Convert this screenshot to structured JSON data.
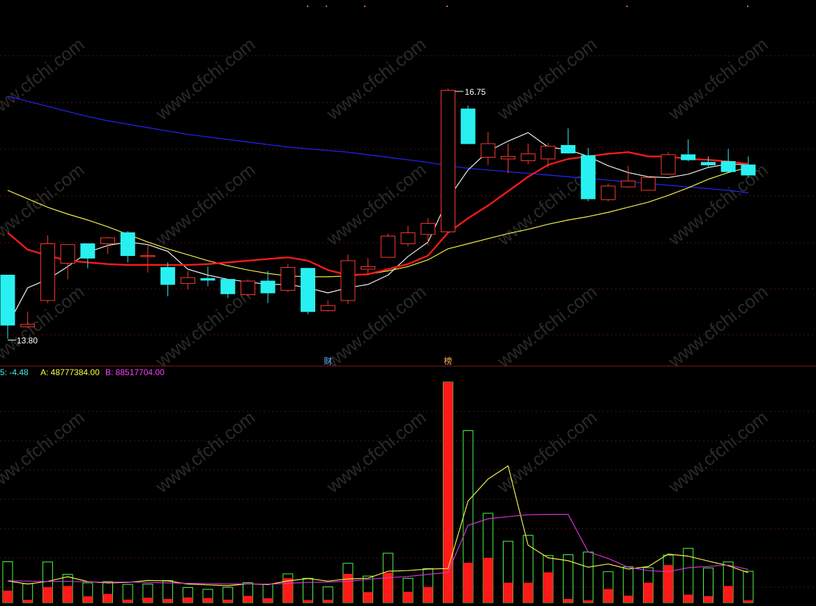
{
  "chart_data": {
    "type": "candlestick",
    "price_axis": {
      "min": 13.6,
      "max": 17.4
    },
    "candles": [
      {
        "o": 14.55,
        "h": 14.55,
        "l": 13.8,
        "c": 13.96
      },
      {
        "o": 13.94,
        "h": 14.12,
        "l": 13.93,
        "c": 13.97
      },
      {
        "o": 14.25,
        "h": 15.02,
        "l": 14.22,
        "c": 14.92
      },
      {
        "o": 14.69,
        "h": 14.9,
        "l": 14.5,
        "c": 14.91
      },
      {
        "o": 14.92,
        "h": 14.92,
        "l": 14.63,
        "c": 14.75
      },
      {
        "o": 14.92,
        "h": 15.0,
        "l": 14.8,
        "c": 14.99
      },
      {
        "o": 15.05,
        "h": 15.07,
        "l": 14.7,
        "c": 14.78
      },
      {
        "o": 14.77,
        "h": 14.9,
        "l": 14.58,
        "c": 14.78
      },
      {
        "o": 14.64,
        "h": 14.7,
        "l": 14.3,
        "c": 14.44
      },
      {
        "o": 14.45,
        "h": 14.6,
        "l": 14.38,
        "c": 14.52
      },
      {
        "o": 14.51,
        "h": 14.65,
        "l": 14.42,
        "c": 14.49
      },
      {
        "o": 14.5,
        "h": 14.5,
        "l": 14.28,
        "c": 14.33
      },
      {
        "o": 14.32,
        "h": 14.5,
        "l": 14.3,
        "c": 14.48
      },
      {
        "o": 14.48,
        "h": 14.6,
        "l": 14.22,
        "c": 14.34
      },
      {
        "o": 14.37,
        "h": 14.68,
        "l": 14.35,
        "c": 14.64
      },
      {
        "o": 14.63,
        "h": 14.63,
        "l": 14.09,
        "c": 14.12
      },
      {
        "o": 14.13,
        "h": 14.25,
        "l": 14.12,
        "c": 14.19
      },
      {
        "o": 14.25,
        "h": 14.79,
        "l": 14.21,
        "c": 14.72
      },
      {
        "o": 14.62,
        "h": 14.75,
        "l": 14.55,
        "c": 14.65
      },
      {
        "o": 14.76,
        "h": 15.04,
        "l": 14.76,
        "c": 15.01
      },
      {
        "o": 14.92,
        "h": 15.13,
        "l": 14.89,
        "c": 15.05
      },
      {
        "o": 15.03,
        "h": 15.22,
        "l": 14.9,
        "c": 15.16
      },
      {
        "o": 15.06,
        "h": 16.75,
        "l": 15.06,
        "c": 16.73
      },
      {
        "o": 16.51,
        "h": 16.55,
        "l": 16.11,
        "c": 16.1
      },
      {
        "o": 15.94,
        "h": 16.24,
        "l": 15.85,
        "c": 16.1
      },
      {
        "o": 15.92,
        "h": 16.1,
        "l": 15.75,
        "c": 15.95
      },
      {
        "o": 15.9,
        "h": 16.1,
        "l": 15.86,
        "c": 15.98
      },
      {
        "o": 15.92,
        "h": 16.11,
        "l": 15.82,
        "c": 16.07
      },
      {
        "o": 16.08,
        "h": 16.28,
        "l": 15.99,
        "c": 15.99
      },
      {
        "o": 15.96,
        "h": 16.05,
        "l": 15.42,
        "c": 15.45
      },
      {
        "o": 15.44,
        "h": 15.63,
        "l": 15.42,
        "c": 15.6
      },
      {
        "o": 15.59,
        "h": 15.84,
        "l": 15.58,
        "c": 15.66
      },
      {
        "o": 15.55,
        "h": 15.72,
        "l": 15.56,
        "c": 15.7
      },
      {
        "o": 15.74,
        "h": 16.0,
        "l": 15.73,
        "c": 15.97
      },
      {
        "o": 15.97,
        "h": 16.15,
        "l": 15.89,
        "c": 15.91
      },
      {
        "o": 15.88,
        "h": 15.95,
        "l": 15.82,
        "c": 15.85
      },
      {
        "o": 15.89,
        "h": 16.04,
        "l": 15.76,
        "c": 15.77
      },
      {
        "o": 15.85,
        "h": 15.95,
        "l": 15.7,
        "c": 15.73
      }
    ],
    "ma_white": [
      13.96,
      14.4,
      14.5,
      14.65,
      14.82,
      14.9,
      14.94,
      14.91,
      14.83,
      14.62,
      14.55,
      14.5,
      14.47,
      14.44,
      14.44,
      14.4,
      14.34,
      14.4,
      14.44,
      14.55,
      14.77,
      14.94,
      15.45,
      15.79,
      16.01,
      16.13,
      16.23,
      16.06,
      16.03,
      15.95,
      15.84,
      15.76,
      15.71,
      15.7,
      15.74,
      15.82,
      15.86,
      15.85
    ],
    "ma_red": [
      15.05,
      14.85,
      14.78,
      14.72,
      14.7,
      14.68,
      14.67,
      14.67,
      14.67,
      14.67,
      14.68,
      14.7,
      14.72,
      14.74,
      14.76,
      14.72,
      14.61,
      14.55,
      14.56,
      14.62,
      14.68,
      14.78,
      15.05,
      15.22,
      15.37,
      15.54,
      15.71,
      15.85,
      15.92,
      15.95,
      15.98,
      16.0,
      15.95,
      15.95,
      15.92,
      15.91,
      15.89,
      15.86
    ],
    "ma_yellow": [
      15.55,
      15.45,
      15.35,
      15.27,
      15.2,
      15.12,
      15.03,
      14.94,
      14.86,
      14.79,
      14.72,
      14.66,
      14.61,
      14.57,
      14.54,
      14.53,
      14.53,
      14.54,
      14.56,
      14.6,
      14.65,
      14.73,
      14.86,
      14.92,
      14.98,
      15.04,
      15.09,
      15.15,
      15.2,
      15.24,
      15.29,
      15.35,
      15.41,
      15.49,
      15.58,
      15.68,
      15.76,
      15.82
    ],
    "ma_blue": [
      16.66,
      16.6,
      16.54,
      16.48,
      16.42,
      16.37,
      16.33,
      16.29,
      16.25,
      16.21,
      16.18,
      16.15,
      16.12,
      16.09,
      16.06,
      16.04,
      16.02,
      16.0,
      15.97,
      15.94,
      15.91,
      15.88,
      15.84,
      15.81,
      15.79,
      15.77,
      15.75,
      15.73,
      15.71,
      15.69,
      15.67,
      15.65,
      15.63,
      15.61,
      15.59,
      15.57,
      15.55,
      15.52
    ],
    "annotations": {
      "high_label": "16.75",
      "low_label": "13.80"
    },
    "markers": [
      {
        "text": "财",
        "index": 16
      },
      {
        "text": "榜",
        "index": 22
      }
    ],
    "volume": {
      "max": 88517704,
      "indicator_labels": [
        {
          "text": "5: -4.48",
          "color": "#3ff0f0"
        },
        {
          "text": "A: 48777384.00",
          "color": "#ffff40"
        },
        {
          "text": "B: 88517704.00",
          "color": "#ff40ff"
        }
      ],
      "bars": [
        {
          "total": 18500000,
          "red": 5400000
        },
        {
          "total": 8500000,
          "red": 1200000
        },
        {
          "total": 18400000,
          "red": 7000000
        },
        {
          "total": 12800000,
          "red": 7500000
        },
        {
          "total": 8900000,
          "red": 2800000
        },
        {
          "total": 9500000,
          "red": 3900000
        },
        {
          "total": 8200000,
          "red": 1300000
        },
        {
          "total": 8400000,
          "red": 2200000
        },
        {
          "total": 10000000,
          "red": 1600000
        },
        {
          "total": 6800000,
          "red": 2300000
        },
        {
          "total": 6000000,
          "red": 2000000
        },
        {
          "total": 6900000,
          "red": 1300000
        },
        {
          "total": 9000000,
          "red": 3000000
        },
        {
          "total": 8400000,
          "red": 1900000
        },
        {
          "total": 13000000,
          "red": 11000000
        },
        {
          "total": 11000000,
          "red": 1100000
        },
        {
          "total": 7100000,
          "red": 1200000
        },
        {
          "total": 17800000,
          "red": 13000000
        },
        {
          "total": 12000000,
          "red": 4700000
        },
        {
          "total": 22400000,
          "red": 13500000
        },
        {
          "total": 11000000,
          "red": 4800000
        },
        {
          "total": 15400000,
          "red": 7000000
        },
        {
          "total": 100000000,
          "red": 100000000
        },
        {
          "total": 78000000,
          "red": 18000000
        },
        {
          "total": 40500000,
          "red": 20300000
        },
        {
          "total": 27800000,
          "red": 9000000
        },
        {
          "total": 30500000,
          "red": 9000000
        },
        {
          "total": 21300000,
          "red": 13700000
        },
        {
          "total": 21700000,
          "red": 1600000
        },
        {
          "total": 22900000,
          "red": 1000000
        },
        {
          "total": 14000000,
          "red": 6100000
        },
        {
          "total": 16200000,
          "red": 3100000
        },
        {
          "total": 15800000,
          "red": 9000000
        },
        {
          "total": 21500000,
          "red": 17000000
        },
        {
          "total": 24600000,
          "red": 3600000
        },
        {
          "total": 15700000,
          "red": 2900000
        },
        {
          "total": 18400000,
          "red": 7500000
        },
        {
          "total": 14200000,
          "red": 1000000
        }
      ],
      "ma_yellow": [
        9800000,
        8400000,
        9600000,
        11700000,
        9500000,
        8900000,
        9100000,
        10000000,
        9800000,
        8400000,
        8000000,
        7600000,
        8500000,
        8100000,
        9800000,
        10900000,
        9700000,
        10700000,
        11000000,
        14200000,
        14500000,
        15200000,
        15400000,
        46000000,
        56000000,
        62000000,
        26000000,
        20300000,
        19000000,
        16000000,
        17500000,
        15200000,
        16300000,
        22000000,
        21000000,
        18800000,
        16700000,
        13500000
      ],
      "ma_magenta": [
        9900000,
        9700000,
        9500000,
        9600000,
        9400000,
        9200000,
        9300000,
        9100000,
        8900000,
        8700000,
        8600000,
        8400000,
        8500000,
        8300000,
        8700000,
        9100000,
        9300000,
        9600000,
        10500000,
        11300000,
        11800000,
        12800000,
        13700000,
        35000000,
        38000000,
        39000000,
        39800000,
        40000000,
        40000000,
        23000000,
        20000000,
        16000000,
        14500000,
        14000000,
        15800000,
        16400000,
        17000000,
        15000000
      ]
    },
    "colors": {
      "background": "#000000",
      "up": "#ff3b30",
      "down": "#29f0f0",
      "ma_white": "#f2f2f2",
      "ma_red": "#ff1a1a",
      "ma_yellow": "#f2f24a",
      "ma_blue": "#2626ff",
      "grid": "#5a1010",
      "volume_up_fill": "#ff1a1a",
      "volume_outline": "#4dff4d"
    },
    "watermark": "www.cfchi.com"
  }
}
